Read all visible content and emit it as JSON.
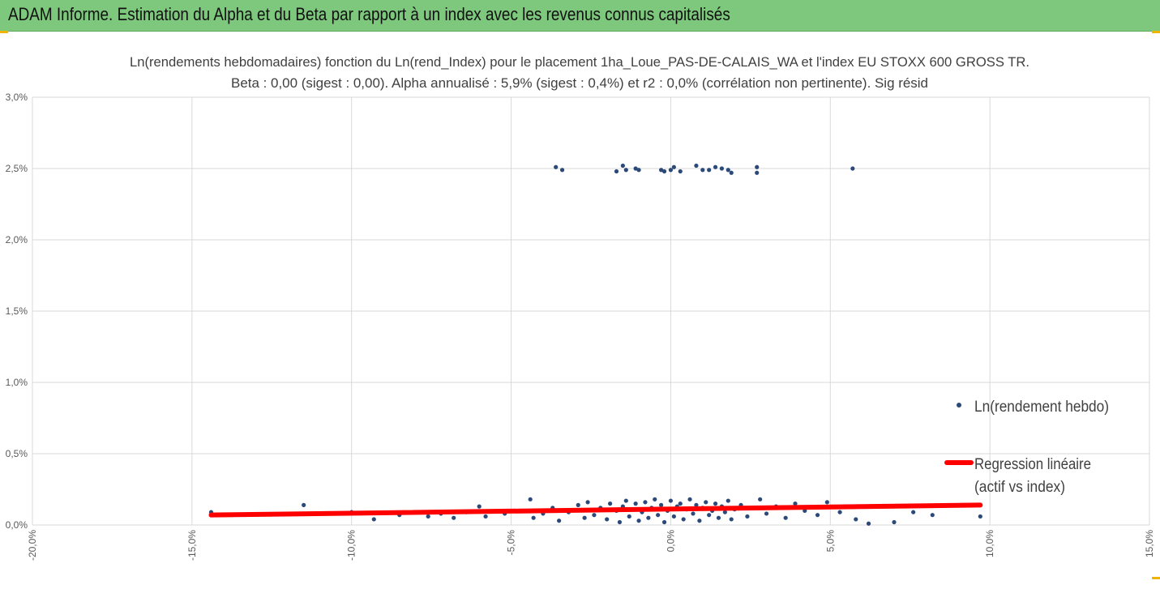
{
  "banner": {
    "title": "ADAM Informe. Estimation du Alpha et du Beta par rapport à un index avec les revenus connus capitalisés"
  },
  "colors": {
    "banner": "#7dc87d",
    "points": "#2b4a7a",
    "regression": "#ff0000",
    "grid": "#d9d9d9"
  },
  "chart_data": {
    "type": "scatter",
    "title_lines": [
      "Ln(rendements hebdomadaires) fonction du Ln(rend_Index) pour le placement 1ha_Loue_PAS-DE-CALAIS_WA et l'index EU STOXX 600 GROSS TR.",
      "Beta : 0,00 (sigest : 0,00). Alpha annualisé : 5,9% (sigest : 0,4%) et r2 : 0,0% (corrélation non pertinente). Sig résid"
    ],
    "xlim": [
      -20,
      15
    ],
    "ylim": [
      0,
      3
    ],
    "x_ticks": [
      "-20,0%",
      "-15,0%",
      "-10,0%",
      "-5,0%",
      "0,0%",
      "5,0%",
      "10,0%",
      "15,0%"
    ],
    "y_ticks": [
      "0,0%",
      "0,5%",
      "1,0%",
      "1,5%",
      "2,0%",
      "2,5%",
      "3,0%"
    ],
    "grid": true,
    "legend_position": "right",
    "series": [
      {
        "name": "Ln(rendement hebdo)",
        "points": [
          [
            -3.6,
            2.51
          ],
          [
            -3.4,
            2.49
          ],
          [
            -1.7,
            2.48
          ],
          [
            -1.5,
            2.52
          ],
          [
            -1.4,
            2.49
          ],
          [
            -1.1,
            2.5
          ],
          [
            -1.0,
            2.49
          ],
          [
            -0.3,
            2.49
          ],
          [
            -0.2,
            2.48
          ],
          [
            0.0,
            2.49
          ],
          [
            0.1,
            2.51
          ],
          [
            0.3,
            2.48
          ],
          [
            0.8,
            2.52
          ],
          [
            1.0,
            2.49
          ],
          [
            1.2,
            2.49
          ],
          [
            1.4,
            2.51
          ],
          [
            1.6,
            2.5
          ],
          [
            1.8,
            2.49
          ],
          [
            1.9,
            2.47
          ],
          [
            2.7,
            2.47
          ],
          [
            2.7,
            2.51
          ],
          [
            5.7,
            2.5
          ],
          [
            -14.4,
            0.09
          ],
          [
            -14.0,
            0.07
          ],
          [
            -11.5,
            0.14
          ],
          [
            -10.0,
            0.09
          ],
          [
            -9.3,
            0.04
          ],
          [
            -8.5,
            0.07
          ],
          [
            -7.6,
            0.06
          ],
          [
            -7.2,
            0.08
          ],
          [
            -6.8,
            0.05
          ],
          [
            -6.4,
            0.09
          ],
          [
            -6.0,
            0.13
          ],
          [
            -5.8,
            0.06
          ],
          [
            -5.2,
            0.08
          ],
          [
            -4.9,
            0.1
          ],
          [
            -4.4,
            0.18
          ],
          [
            -4.3,
            0.05
          ],
          [
            -4.0,
            0.08
          ],
          [
            -3.7,
            0.12
          ],
          [
            -3.5,
            0.03
          ],
          [
            -3.2,
            0.09
          ],
          [
            -2.9,
            0.14
          ],
          [
            -2.7,
            0.05
          ],
          [
            -2.6,
            0.16
          ],
          [
            -2.4,
            0.07
          ],
          [
            -2.2,
            0.12
          ],
          [
            -2.0,
            0.04
          ],
          [
            -1.9,
            0.15
          ],
          [
            -1.7,
            0.1
          ],
          [
            -1.6,
            0.02
          ],
          [
            -1.5,
            0.13
          ],
          [
            -1.4,
            0.17
          ],
          [
            -1.3,
            0.06
          ],
          [
            -1.2,
            0.11
          ],
          [
            -1.1,
            0.15
          ],
          [
            -1.0,
            0.03
          ],
          [
            -0.9,
            0.09
          ],
          [
            -0.8,
            0.16
          ],
          [
            -0.7,
            0.05
          ],
          [
            -0.6,
            0.12
          ],
          [
            -0.5,
            0.18
          ],
          [
            -0.4,
            0.07
          ],
          [
            -0.3,
            0.14
          ],
          [
            -0.2,
            0.02
          ],
          [
            -0.1,
            0.1
          ],
          [
            0.0,
            0.17
          ],
          [
            0.1,
            0.06
          ],
          [
            0.2,
            0.13
          ],
          [
            0.3,
            0.15
          ],
          [
            0.4,
            0.04
          ],
          [
            0.5,
            0.11
          ],
          [
            0.6,
            0.18
          ],
          [
            0.7,
            0.08
          ],
          [
            0.8,
            0.14
          ],
          [
            0.9,
            0.03
          ],
          [
            1.0,
            0.12
          ],
          [
            1.1,
            0.16
          ],
          [
            1.2,
            0.07
          ],
          [
            1.3,
            0.1
          ],
          [
            1.4,
            0.15
          ],
          [
            1.5,
            0.05
          ],
          [
            1.6,
            0.13
          ],
          [
            1.7,
            0.09
          ],
          [
            1.8,
            0.17
          ],
          [
            1.9,
            0.04
          ],
          [
            2.0,
            0.11
          ],
          [
            2.2,
            0.14
          ],
          [
            2.4,
            0.06
          ],
          [
            2.6,
            0.12
          ],
          [
            2.8,
            0.18
          ],
          [
            3.0,
            0.08
          ],
          [
            3.3,
            0.13
          ],
          [
            3.6,
            0.05
          ],
          [
            3.9,
            0.15
          ],
          [
            4.2,
            0.1
          ],
          [
            4.6,
            0.07
          ],
          [
            4.9,
            0.16
          ],
          [
            5.3,
            0.09
          ],
          [
            5.8,
            0.04
          ],
          [
            6.2,
            0.01
          ],
          [
            7.0,
            0.02
          ],
          [
            7.6,
            0.09
          ],
          [
            8.2,
            0.07
          ],
          [
            9.7,
            0.06
          ]
        ]
      },
      {
        "name": "Regression linéaire (actif vs index)",
        "name_lines": [
          "Regression linéaire",
          "(actif vs index)"
        ],
        "line": [
          [
            -14.4,
            0.07
          ],
          [
            9.7,
            0.14
          ]
        ]
      }
    ]
  }
}
